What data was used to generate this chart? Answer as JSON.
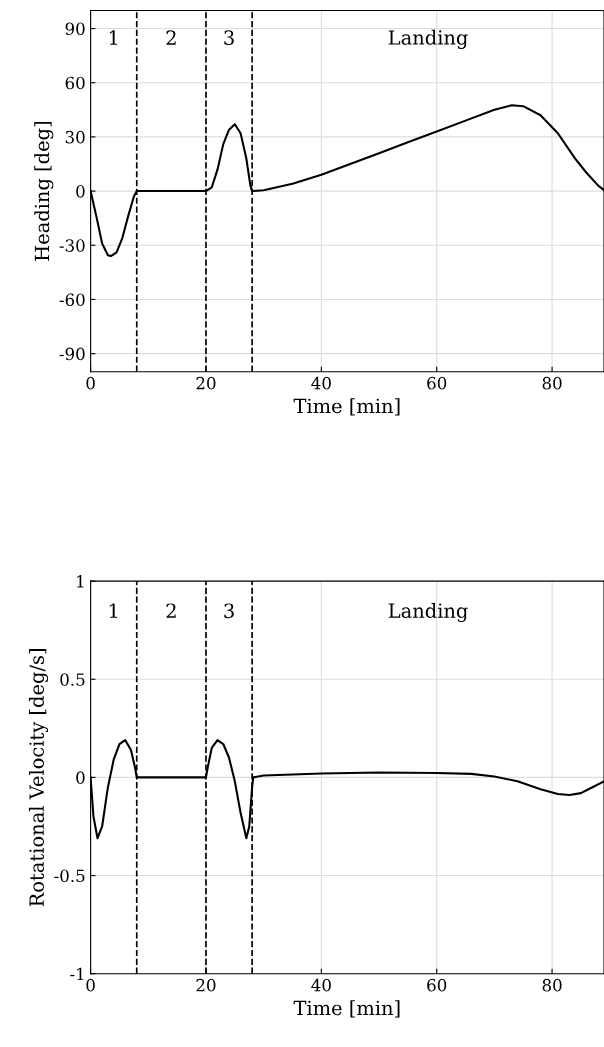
{
  "chart_data": [
    {
      "type": "line",
      "xlabel": "Time [min]",
      "ylabel": "Heading [deg]",
      "xlim": [
        0,
        89
      ],
      "ylim": [
        -100,
        100
      ],
      "xticks": [
        0,
        20,
        40,
        60,
        80
      ],
      "yticks": [
        -90,
        -60,
        -30,
        0,
        30,
        60,
        90
      ],
      "grid": true,
      "legend": false,
      "line_style": "solid",
      "marker": "none",
      "series": [
        {
          "color": "#000000",
          "x": [
            0,
            1,
            2,
            3,
            3.5,
            4.5,
            5.5,
            6.5,
            7.5,
            8,
            20,
            21,
            22,
            23,
            24,
            25,
            26,
            27,
            27.7,
            28,
            30,
            35,
            40,
            45,
            50,
            55,
            60,
            65,
            70,
            73,
            75,
            78,
            81,
            84,
            86,
            88,
            89
          ],
          "values": [
            0,
            -14,
            -29,
            -35.5,
            -36,
            -34,
            -26,
            -14,
            -3,
            0,
            0,
            2,
            12,
            26,
            34,
            37,
            32,
            18,
            3,
            0,
            0.5,
            4,
            9,
            15,
            21,
            27,
            33,
            39,
            45,
            47.5,
            47,
            42,
            32,
            18,
            10,
            3,
            0.5
          ]
        }
      ],
      "ref_lines": [
        {
          "axis": "x",
          "value": 8,
          "color": "#000000",
          "line_style": "dashed"
        },
        {
          "axis": "x",
          "value": 20,
          "color": "#000000",
          "line_style": "dashed"
        },
        {
          "axis": "x",
          "value": 28,
          "color": "#000000",
          "line_style": "dashed"
        }
      ],
      "annotations": [
        "1",
        "2",
        "3",
        "Landing"
      ]
    },
    {
      "type": "line",
      "xlabel": "Time [min]",
      "ylabel": "Rotational Velocity [deg/s]",
      "xlim": [
        0,
        89
      ],
      "ylim": [
        -1,
        1
      ],
      "xticks": [
        0,
        20,
        40,
        60,
        80
      ],
      "yticks": [
        -1,
        -0.5,
        0,
        0.5,
        1
      ],
      "grid": true,
      "legend": false,
      "line_style": "solid",
      "marker": "none",
      "series": [
        {
          "color": "#000000",
          "x": [
            0,
            0.5,
            1.2,
            2,
            3,
            4,
            5,
            6,
            7,
            7.7,
            8,
            20,
            20.3,
            21,
            22,
            23,
            24,
            25,
            26,
            27,
            27.5,
            28,
            28.2,
            30,
            40,
            50,
            60,
            66,
            70,
            74,
            78,
            81,
            83,
            85,
            87,
            89
          ],
          "values": [
            0,
            -0.2,
            -0.31,
            -0.25,
            -0.05,
            0.09,
            0.17,
            0.19,
            0.14,
            0.05,
            0,
            0,
            0.05,
            0.15,
            0.19,
            0.17,
            0.1,
            -0.02,
            -0.18,
            -0.31,
            -0.25,
            -0.05,
            0,
            0.01,
            0.02,
            0.025,
            0.022,
            0.018,
            0.005,
            -0.02,
            -0.06,
            -0.085,
            -0.09,
            -0.08,
            -0.05,
            -0.02
          ]
        }
      ],
      "ref_lines": [
        {
          "axis": "x",
          "value": 8,
          "color": "#000000",
          "line_style": "dashed"
        },
        {
          "axis": "x",
          "value": 20,
          "color": "#000000",
          "line_style": "dashed"
        },
        {
          "axis": "x",
          "value": 28,
          "color": "#000000",
          "line_style": "dashed"
        }
      ],
      "annotations": [
        "1",
        "2",
        "3",
        "Landing"
      ]
    }
  ]
}
